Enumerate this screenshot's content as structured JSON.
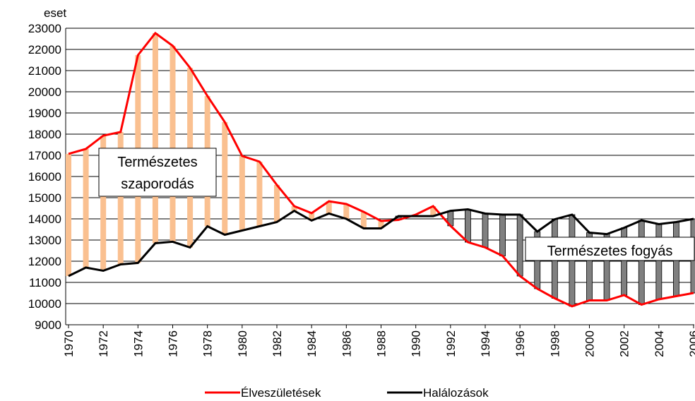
{
  "chart_data": {
    "type": "line",
    "y_label": "eset",
    "x": [
      1970,
      1971,
      1972,
      1973,
      1974,
      1975,
      1976,
      1977,
      1978,
      1979,
      1980,
      1981,
      1982,
      1983,
      1984,
      1985,
      1986,
      1987,
      1988,
      1989,
      1990,
      1991,
      1992,
      1993,
      1994,
      1995,
      1996,
      1997,
      1998,
      1999,
      2000,
      2001,
      2002,
      2003,
      2004,
      2005,
      2006
    ],
    "xlim": [
      1970,
      2006
    ],
    "xticks": [
      1970,
      1972,
      1974,
      1976,
      1978,
      1980,
      1982,
      1984,
      1986,
      1988,
      1990,
      1992,
      1994,
      1996,
      1998,
      2000,
      2002,
      2004,
      2006
    ],
    "ylim": [
      9000,
      23000
    ],
    "yticks": [
      9000,
      10000,
      11000,
      12000,
      13000,
      14000,
      15000,
      16000,
      17000,
      18000,
      19000,
      20000,
      21000,
      22000,
      23000
    ],
    "grid": true,
    "legend": "bottom",
    "series": [
      {
        "name": "Élveszületések",
        "color": "#ff0000",
        "values": [
          17070,
          17300,
          17930,
          18100,
          21730,
          22770,
          22170,
          21130,
          19800,
          18570,
          16970,
          16700,
          15600,
          14600,
          14270,
          14830,
          14700,
          14330,
          13900,
          13950,
          14200,
          14600,
          13670,
          12900,
          12650,
          12250,
          11300,
          10700,
          10250,
          9870,
          10150,
          10150,
          10400,
          9950,
          10200,
          10350,
          10500
        ]
      },
      {
        "name": "Halálozások",
        "color": "#000000",
        "values": [
          11300,
          11700,
          11550,
          11850,
          11920,
          12850,
          12920,
          12650,
          13650,
          13250,
          13450,
          13650,
          13850,
          14380,
          13920,
          14250,
          14000,
          13550,
          13550,
          14130,
          14130,
          14130,
          14380,
          14450,
          14250,
          14200,
          14200,
          13400,
          13980,
          14200,
          13350,
          13280,
          13580,
          13930,
          13750,
          13850,
          14000
        ]
      }
    ],
    "surplus_color": "#fac090",
    "deficit_color": "#808080",
    "annotations": [
      {
        "lines": [
          "Természetes",
          "szaporodás"
        ]
      },
      {
        "lines": [
          "Természetes fogyás"
        ]
      }
    ]
  }
}
